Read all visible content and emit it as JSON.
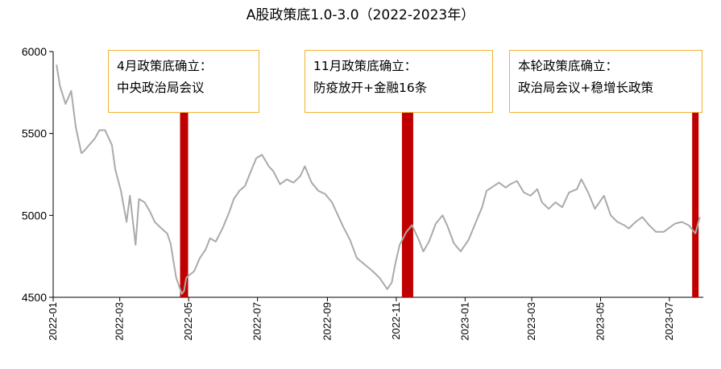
{
  "chart_data": {
    "type": "line",
    "title": "A股政策底1.0-3.0（2022-2023年）",
    "xlabel": "",
    "ylabel": "",
    "ylim": [
      4500,
      6000
    ],
    "yticks": [
      4500,
      5000,
      5500,
      6000
    ],
    "xticks": [
      "2022-01",
      "2022-03",
      "2022-05",
      "2022-07",
      "2022-09",
      "2022-11",
      "2023-01",
      "2023-03",
      "2023-05",
      "2023-07"
    ],
    "grid": false,
    "line_color": "#AAAAAA",
    "marker_color": "#C00000",
    "callout_border_color": "#F2B233",
    "series": [
      {
        "x": [
          "2022-01-04",
          "2022-01-07",
          "2022-01-12",
          "2022-01-17",
          "2022-01-21",
          "2022-01-26",
          "2022-01-28",
          "2022-02-07",
          "2022-02-11",
          "2022-02-16",
          "2022-02-22",
          "2022-02-25",
          "2022-03-02",
          "2022-03-07",
          "2022-03-10",
          "2022-03-15",
          "2022-03-18",
          "2022-03-23",
          "2022-03-28",
          "2022-04-01",
          "2022-04-07",
          "2022-04-12",
          "2022-04-15",
          "2022-04-20",
          "2022-04-25",
          "2022-04-27",
          "2022-04-29",
          "2022-05-06",
          "2022-05-11",
          "2022-05-16",
          "2022-05-20",
          "2022-05-25",
          "2022-05-31",
          "2022-06-06",
          "2022-06-10",
          "2022-06-15",
          "2022-06-20",
          "2022-06-24",
          "2022-06-30",
          "2022-07-05",
          "2022-07-11",
          "2022-07-15",
          "2022-07-21",
          "2022-07-27",
          "2022-08-02",
          "2022-08-08",
          "2022-08-12",
          "2022-08-18",
          "2022-08-24",
          "2022-08-30",
          "2022-09-05",
          "2022-09-09",
          "2022-09-15",
          "2022-09-21",
          "2022-09-27",
          "2022-10-11",
          "2022-10-17",
          "2022-10-24",
          "2022-10-28",
          "2022-10-31",
          "2022-11-04",
          "2022-11-10",
          "2022-11-15",
          "2022-11-21",
          "2022-11-25",
          "2022-11-30",
          "2022-12-06",
          "2022-12-12",
          "2022-12-16",
          "2022-12-22",
          "2022-12-28",
          "2023-01-04",
          "2023-01-10",
          "2023-01-16",
          "2023-01-20",
          "2023-01-31",
          "2023-02-06",
          "2023-02-10",
          "2023-02-16",
          "2023-02-22",
          "2023-02-28",
          "2023-03-06",
          "2023-03-10",
          "2023-03-16",
          "2023-03-22",
          "2023-03-28",
          "2023-04-03",
          "2023-04-10",
          "2023-04-14",
          "2023-04-20",
          "2023-04-26",
          "2023-05-04",
          "2023-05-10",
          "2023-05-16",
          "2023-05-22",
          "2023-05-26",
          "2023-06-01",
          "2023-06-07",
          "2023-06-13",
          "2023-06-19",
          "2023-06-26",
          "2023-06-30",
          "2023-07-06",
          "2023-07-12",
          "2023-07-18",
          "2023-07-24",
          "2023-07-28"
        ],
        "values": [
          5920,
          5790,
          5680,
          5760,
          5540,
          5380,
          5390,
          5470,
          5520,
          5520,
          5430,
          5280,
          5150,
          4960,
          5120,
          4820,
          5100,
          5080,
          5020,
          4960,
          4920,
          4890,
          4830,
          4620,
          4520,
          4540,
          4620,
          4660,
          4740,
          4790,
          4860,
          4840,
          4920,
          5020,
          5100,
          5150,
          5180,
          5250,
          5350,
          5370,
          5300,
          5270,
          5190,
          5220,
          5200,
          5240,
          5300,
          5200,
          5150,
          5130,
          5080,
          5020,
          4930,
          4850,
          4740,
          4660,
          4620,
          4550,
          4590,
          4700,
          4820,
          4900,
          4940,
          4850,
          4780,
          4840,
          4950,
          5000,
          4940,
          4830,
          4780,
          4850,
          4950,
          5050,
          5150,
          5200,
          5170,
          5190,
          5210,
          5140,
          5120,
          5160,
          5080,
          5040,
          5080,
          5050,
          5140,
          5160,
          5220,
          5140,
          5040,
          5120,
          5000,
          4960,
          4940,
          4920,
          4960,
          4990,
          4940,
          4900,
          4900,
          4920,
          4950,
          4960,
          4940,
          4890,
          4990
        ]
      }
    ],
    "policy_markers": [
      {
        "date": "2022-04-27",
        "label_line1": "4月政策底确立：",
        "label_line2": "中央政治局会议"
      },
      {
        "date": "2022-11-11",
        "label_line1": "11月政策底确立：",
        "label_line2": "防疫放开+金融16条"
      },
      {
        "date": "2023-07-24",
        "label_line1": "本轮政策底确立：",
        "label_line2": "政治局会议+稳增长政策"
      }
    ]
  }
}
